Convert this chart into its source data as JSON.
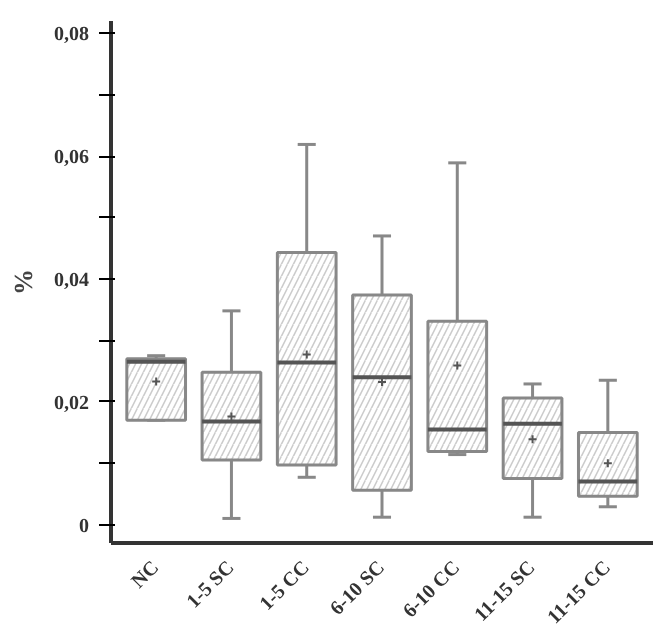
{
  "chart_data": {
    "type": "box",
    "ylabel": "%",
    "categories": [
      "NC",
      "1-5 SC",
      "1-5 CC",
      "6-10 SC",
      "6-10 CC",
      "11-15 SC",
      "11-15 CC"
    ],
    "boxes": [
      {
        "low": 0.017,
        "q1": 0.017,
        "median": 0.0265,
        "q3": 0.027,
        "high": 0.0275,
        "mean": 0.0233
      },
      {
        "low": 0.001,
        "q1": 0.0105,
        "median": 0.0168,
        "q3": 0.0248,
        "high": 0.0348,
        "mean": 0.0176
      },
      {
        "low": 0.0077,
        "q1": 0.0097,
        "median": 0.0264,
        "q3": 0.0443,
        "high": 0.0619,
        "mean": 0.0277
      },
      {
        "low": 0.0012,
        "q1": 0.0056,
        "median": 0.024,
        "q3": 0.0374,
        "high": 0.047,
        "mean": 0.0232
      },
      {
        "low": 0.0114,
        "q1": 0.0119,
        "median": 0.0155,
        "q3": 0.0331,
        "high": 0.0589,
        "mean": 0.0259
      },
      {
        "low": 0.0012,
        "q1": 0.0075,
        "median": 0.0164,
        "q3": 0.0206,
        "high": 0.0229,
        "mean": 0.0139
      },
      {
        "low": 0.0029,
        "q1": 0.0046,
        "median": 0.007,
        "q3": 0.015,
        "high": 0.0235,
        "mean": 0.01
      }
    ],
    "ylim": [
      -0.003,
      0.082
    ],
    "yticks": [
      {
        "value": 0,
        "label": "0"
      },
      {
        "value": 0.01,
        "label": null
      },
      {
        "value": 0.02,
        "label": "0,02"
      },
      {
        "value": 0.03,
        "label": null
      },
      {
        "value": 0.04,
        "label": "0,04"
      },
      {
        "value": 0.05,
        "label": null
      },
      {
        "value": 0.06,
        "label": "0,06"
      },
      {
        "value": 0.07,
        "label": null
      },
      {
        "value": 0.08,
        "label": "0,08"
      }
    ],
    "grid": false
  }
}
